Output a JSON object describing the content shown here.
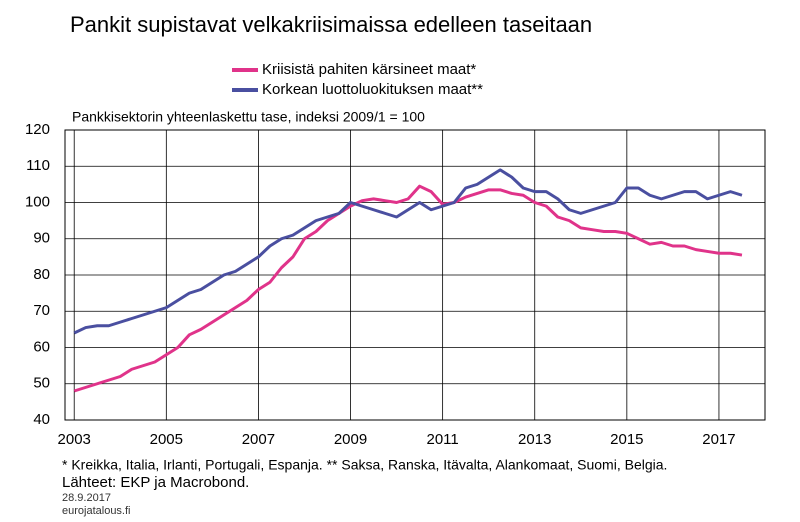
{
  "chart_data": {
    "type": "line",
    "title": "Pankit supistavat velkakriisimaissa edelleen taseitaan",
    "subtitle": "Pankkisektorin yhteenlaskettu tase, indeksi 2009/1 = 100",
    "footnote": "* Kreikka, Italia, Irlanti, Portugali, Espanja. ** Saksa, Ranska, Itävalta, Alankomaat, Suomi, Belgia.",
    "source": "Lähteet: EKP ja Macrobond.",
    "date": "28.9.2017",
    "site": "eurojatalous.fi",
    "x": [
      2003.0,
      2003.25,
      2003.5,
      2003.75,
      2004.0,
      2004.25,
      2004.5,
      2004.75,
      2005.0,
      2005.25,
      2005.5,
      2005.75,
      2006.0,
      2006.25,
      2006.5,
      2006.75,
      2007.0,
      2007.25,
      2007.5,
      2007.75,
      2008.0,
      2008.25,
      2008.5,
      2008.75,
      2009.0,
      2009.25,
      2009.5,
      2009.75,
      2010.0,
      2010.25,
      2010.5,
      2010.75,
      2011.0,
      2011.25,
      2011.5,
      2011.75,
      2012.0,
      2012.25,
      2012.5,
      2012.75,
      2013.0,
      2013.25,
      2013.5,
      2013.75,
      2014.0,
      2014.25,
      2014.5,
      2014.75,
      2015.0,
      2015.25,
      2015.5,
      2015.75,
      2016.0,
      2016.25,
      2016.5,
      2016.75,
      2017.0,
      2017.25,
      2017.5
    ],
    "series": [
      {
        "name": "Kriisistä pahiten kärsineet maat*",
        "color": "#e0338a",
        "values": [
          48,
          49,
          50,
          51,
          52,
          54,
          55,
          56,
          58,
          60,
          63.5,
          65,
          67,
          69,
          71,
          73,
          76,
          78,
          82,
          85,
          90,
          92,
          95,
          97,
          99,
          100.5,
          101,
          100.5,
          100,
          101,
          104.5,
          103,
          99.5,
          100,
          101.5,
          102.5,
          103.5,
          103.5,
          102.5,
          102,
          100,
          99,
          96,
          95,
          93,
          92.5,
          92,
          92,
          91.5,
          90,
          88.5,
          89,
          88,
          88,
          87,
          86.5,
          86,
          86,
          85.5
        ]
      },
      {
        "name": "Korkean luottoluokituksen maat**",
        "color": "#4a4fa0",
        "values": [
          64,
          65.5,
          66,
          66,
          67,
          68,
          69,
          70,
          71,
          73,
          75,
          76,
          78,
          80,
          81,
          83,
          85,
          88,
          90,
          91,
          93,
          95,
          96,
          97,
          100,
          99,
          98,
          97,
          96,
          98,
          100,
          98,
          99,
          100,
          104,
          105,
          107,
          109,
          107,
          104,
          103,
          103,
          101,
          98,
          97,
          98,
          99,
          100,
          104,
          104,
          102,
          101,
          102,
          103,
          103,
          101,
          102,
          103,
          102
        ]
      }
    ],
    "xlim": [
      2002.8,
      2018.0
    ],
    "xticks": [
      2003,
      2005,
      2007,
      2009,
      2011,
      2013,
      2015,
      2017
    ],
    "ylim": [
      40,
      120
    ],
    "yticks": [
      40,
      50,
      60,
      70,
      80,
      90,
      100,
      110,
      120
    ],
    "grid": true
  }
}
